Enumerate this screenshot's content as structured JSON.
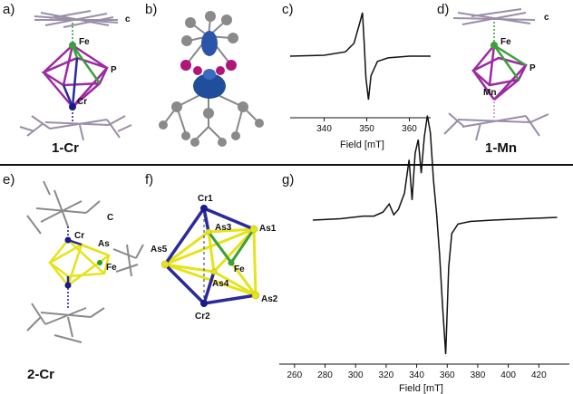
{
  "panels": {
    "a": {
      "label": "a)",
      "compound": "1-Cr",
      "atoms": {
        "fe": "Fe",
        "p": "P",
        "cr": "Cr",
        "c": "c"
      }
    },
    "b": {
      "label": "b)"
    },
    "c": {
      "label": "c)"
    },
    "d": {
      "label": "d)",
      "compound": "1-Mn",
      "atoms": {
        "fe": "Fe",
        "p": "P",
        "mn": "Mn",
        "c": "c"
      }
    },
    "e": {
      "label": "e)",
      "compound": "2-Cr",
      "atoms": {
        "cr": "Cr",
        "as": "As",
        "fe": "Fe",
        "c": "C"
      }
    },
    "f": {
      "label": "f)",
      "atoms": {
        "cr1": "Cr1",
        "cr2": "Cr2",
        "as1": "As1",
        "as2": "As2",
        "as3": "As3",
        "as4": "As4",
        "as5": "As5",
        "fe": "Fe"
      }
    },
    "g": {
      "label": "g)"
    }
  },
  "chart_data": [
    {
      "id": "c",
      "type": "line",
      "title": "",
      "xlabel": "Field [mT]",
      "ylabel": "",
      "xlim": [
        332,
        365
      ],
      "xticks": [
        340,
        350,
        360
      ],
      "series": [
        {
          "x": [
            332,
            340,
            345,
            347,
            348.3,
            349,
            349.4,
            349.8,
            350.4,
            351,
            352.5,
            355,
            360,
            365
          ],
          "y": [
            0,
            0.02,
            0.1,
            0.3,
            0.75,
            1.0,
            0.3,
            -0.5,
            -1.0,
            -0.45,
            -0.12,
            -0.04,
            0,
            0
          ]
        }
      ],
      "grid": false
    },
    {
      "id": "g",
      "type": "line",
      "title": "",
      "xlabel": "Field [mT]",
      "ylabel": "",
      "xlim": [
        250,
        440
      ],
      "xticks": [
        260,
        280,
        300,
        320,
        340,
        360,
        380,
        400,
        420
      ],
      "series": [
        {
          "x": [
            272,
            290,
            305,
            312,
            318,
            322,
            325,
            328,
            332,
            335,
            337,
            339,
            341,
            343,
            345,
            347,
            349,
            351,
            353,
            355,
            357,
            359,
            361,
            363,
            367,
            375,
            390,
            410,
            432
          ],
          "y": [
            0,
            0.01,
            0.03,
            0.03,
            0.06,
            0.12,
            0.04,
            0.08,
            0.2,
            0.45,
            0.15,
            0.5,
            0.6,
            0.35,
            0.62,
            0.78,
            0.65,
            0.3,
            0.05,
            -0.25,
            -0.65,
            -1.0,
            -0.35,
            -0.1,
            -0.03,
            -0.01,
            0,
            0.01,
            0.02
          ]
        }
      ],
      "grid": false
    }
  ]
}
